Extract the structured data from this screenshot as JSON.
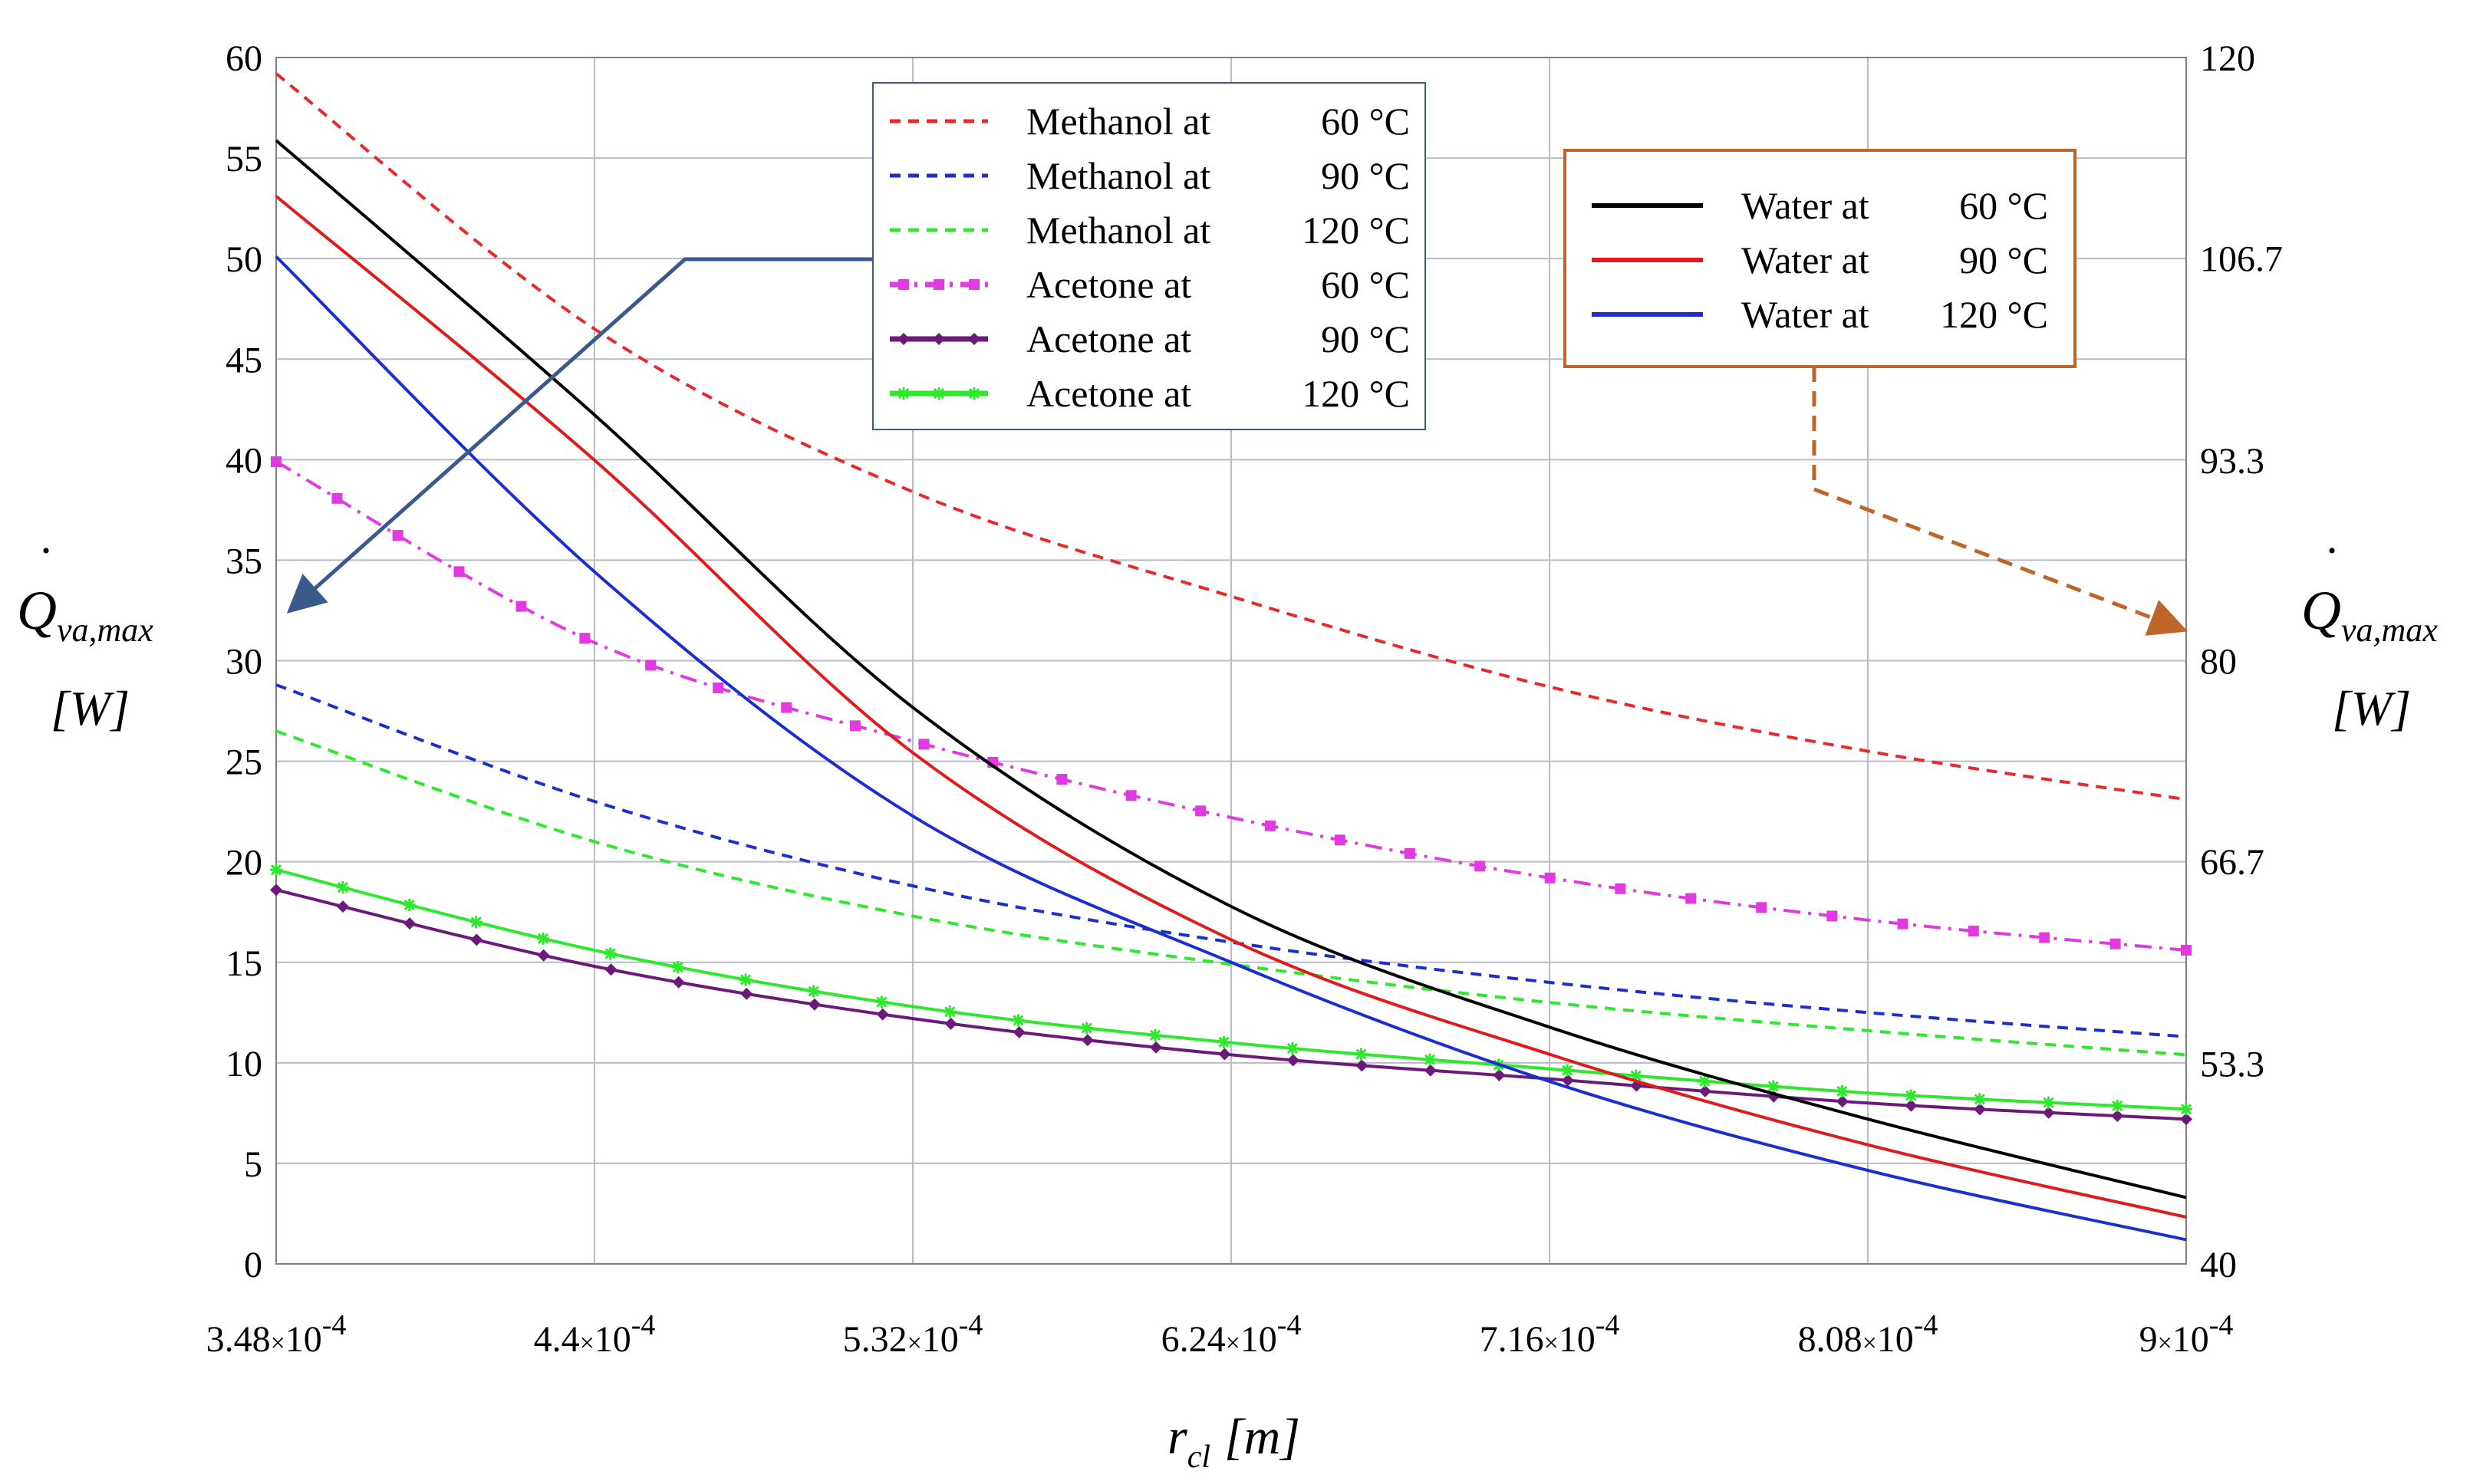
{
  "chart_data": {
    "type": "line",
    "title": "",
    "xlabel": "r_cl [m]",
    "xlabel_var": "r",
    "xlabel_sub": "cl",
    "xlabel_unit": "[m]",
    "ylabel_left": {
      "symbol": "Q",
      "subscript": "va,max",
      "unit": "[W]"
    },
    "ylabel_right": {
      "symbol": "Q",
      "subscript": "va,max",
      "unit": "[W]"
    },
    "xlim": [
      0.000348,
      0.0009
    ],
    "ylim_left": [
      0,
      60
    ],
    "ylim_right": [
      40,
      120
    ],
    "grid": true,
    "x_ticks": [
      {
        "value": 0.000348,
        "mant": "3.48",
        "exp": "-4"
      },
      {
        "value": 0.00044,
        "mant": "4.4",
        "exp": "-4"
      },
      {
        "value": 0.000532,
        "mant": "5.32",
        "exp": "-4"
      },
      {
        "value": 0.000624,
        "mant": "6.24",
        "exp": "-4"
      },
      {
        "value": 0.000716,
        "mant": "7.16",
        "exp": "-4"
      },
      {
        "value": 0.000808,
        "mant": "8.08",
        "exp": "-4"
      },
      {
        "value": 0.0009,
        "mant": "9",
        "exp": "-4"
      }
    ],
    "y_ticks_left": [
      "0",
      "5",
      "10",
      "15",
      "20",
      "25",
      "30",
      "35",
      "40",
      "45",
      "50",
      "55",
      "60"
    ],
    "y_ticks_right": [
      "40",
      "53.3",
      "66.7",
      "80",
      "93.3",
      "106.7",
      "120"
    ],
    "x": [
      0.000348,
      0.00044,
      0.000532,
      0.000624,
      0.000716,
      0.000808,
      0.0009
    ],
    "series": [
      {
        "name": "Methanol at 60 °C",
        "legend_main": "Methanol at",
        "legend_temp": "60 °C",
        "axis": "left",
        "color": "#e8282b",
        "style": "dashed",
        "marker": "none",
        "values": [
          59.2,
          46.5,
          38.4,
          33.2,
          28.7,
          25.5,
          23.1
        ]
      },
      {
        "name": "Methanol at 90 °C",
        "legend_main": "Methanol at",
        "legend_temp": "90 °C",
        "axis": "left",
        "color": "#1b2fd0",
        "style": "dashed",
        "marker": "none",
        "values": [
          28.8,
          23.0,
          18.8,
          16.0,
          14.0,
          12.5,
          11.3
        ]
      },
      {
        "name": "Methanol at 120 °C",
        "legend_main": "Methanol at",
        "legend_temp": "120 °C",
        "axis": "left",
        "color": "#2de82d",
        "style": "dashed",
        "marker": "none",
        "values": [
          26.5,
          21.0,
          17.3,
          14.9,
          13.0,
          11.6,
          10.4
        ]
      },
      {
        "name": "Acetone at 60 °C",
        "legend_main": "Acetone at",
        "legend_temp": "60 °C",
        "axis": "left",
        "color": "#e03ae0",
        "style": "dashdot",
        "marker": "square",
        "values": [
          39.9,
          30.9,
          26.0,
          22.2,
          19.2,
          17.1,
          15.6
        ]
      },
      {
        "name": "Acetone at 90 °C",
        "legend_main": "Acetone at",
        "legend_temp": "90 °C",
        "axis": "left",
        "color": "#6b1a7a",
        "style": "solid",
        "marker": "diamond",
        "values": [
          18.6,
          14.8,
          12.2,
          10.4,
          9.2,
          8.0,
          7.2
        ]
      },
      {
        "name": "Acetone at 120 °C",
        "legend_main": "Acetone at",
        "legend_temp": "120 °C",
        "axis": "left",
        "color": "#2de82d",
        "style": "solid",
        "marker": "star",
        "values": [
          19.6,
          15.6,
          12.8,
          11.0,
          9.7,
          8.5,
          7.7
        ]
      },
      {
        "name": "Water at 60 °C",
        "legend_main": "Water at",
        "legend_temp": "60 °C",
        "axis": "right",
        "color": "#000000",
        "style": "solid",
        "marker": "none",
        "values": [
          114.5,
          96.3,
          76.9,
          63.7,
          55.7,
          49.6,
          44.4
        ]
      },
      {
        "name": "Water at 90 °C",
        "legend_main": "Water at",
        "legend_temp": "90 °C",
        "axis": "right",
        "color": "#e01b1b",
        "style": "solid",
        "marker": "none",
        "values": [
          110.8,
          93.3,
          73.9,
          61.5,
          53.9,
          47.9,
          43.1
        ]
      },
      {
        "name": "Water at 120 °C",
        "legend_main": "Water at",
        "legend_temp": "120 °C",
        "axis": "right",
        "color": "#1b2fd0",
        "style": "solid",
        "marker": "none",
        "values": [
          106.8,
          85.9,
          69.7,
          60.0,
          52.1,
          46.2,
          41.6
        ]
      }
    ],
    "legend_left_placement": "top-center",
    "legend_right_placement": "top-right",
    "arrow_left_color": "#3a5a8c",
    "arrow_right_color": "#c0652a",
    "legend_right_border_color": "#c0652a",
    "legend_left_border_color": "#3a5a8c",
    "grid_color": "#b8bcc8"
  }
}
